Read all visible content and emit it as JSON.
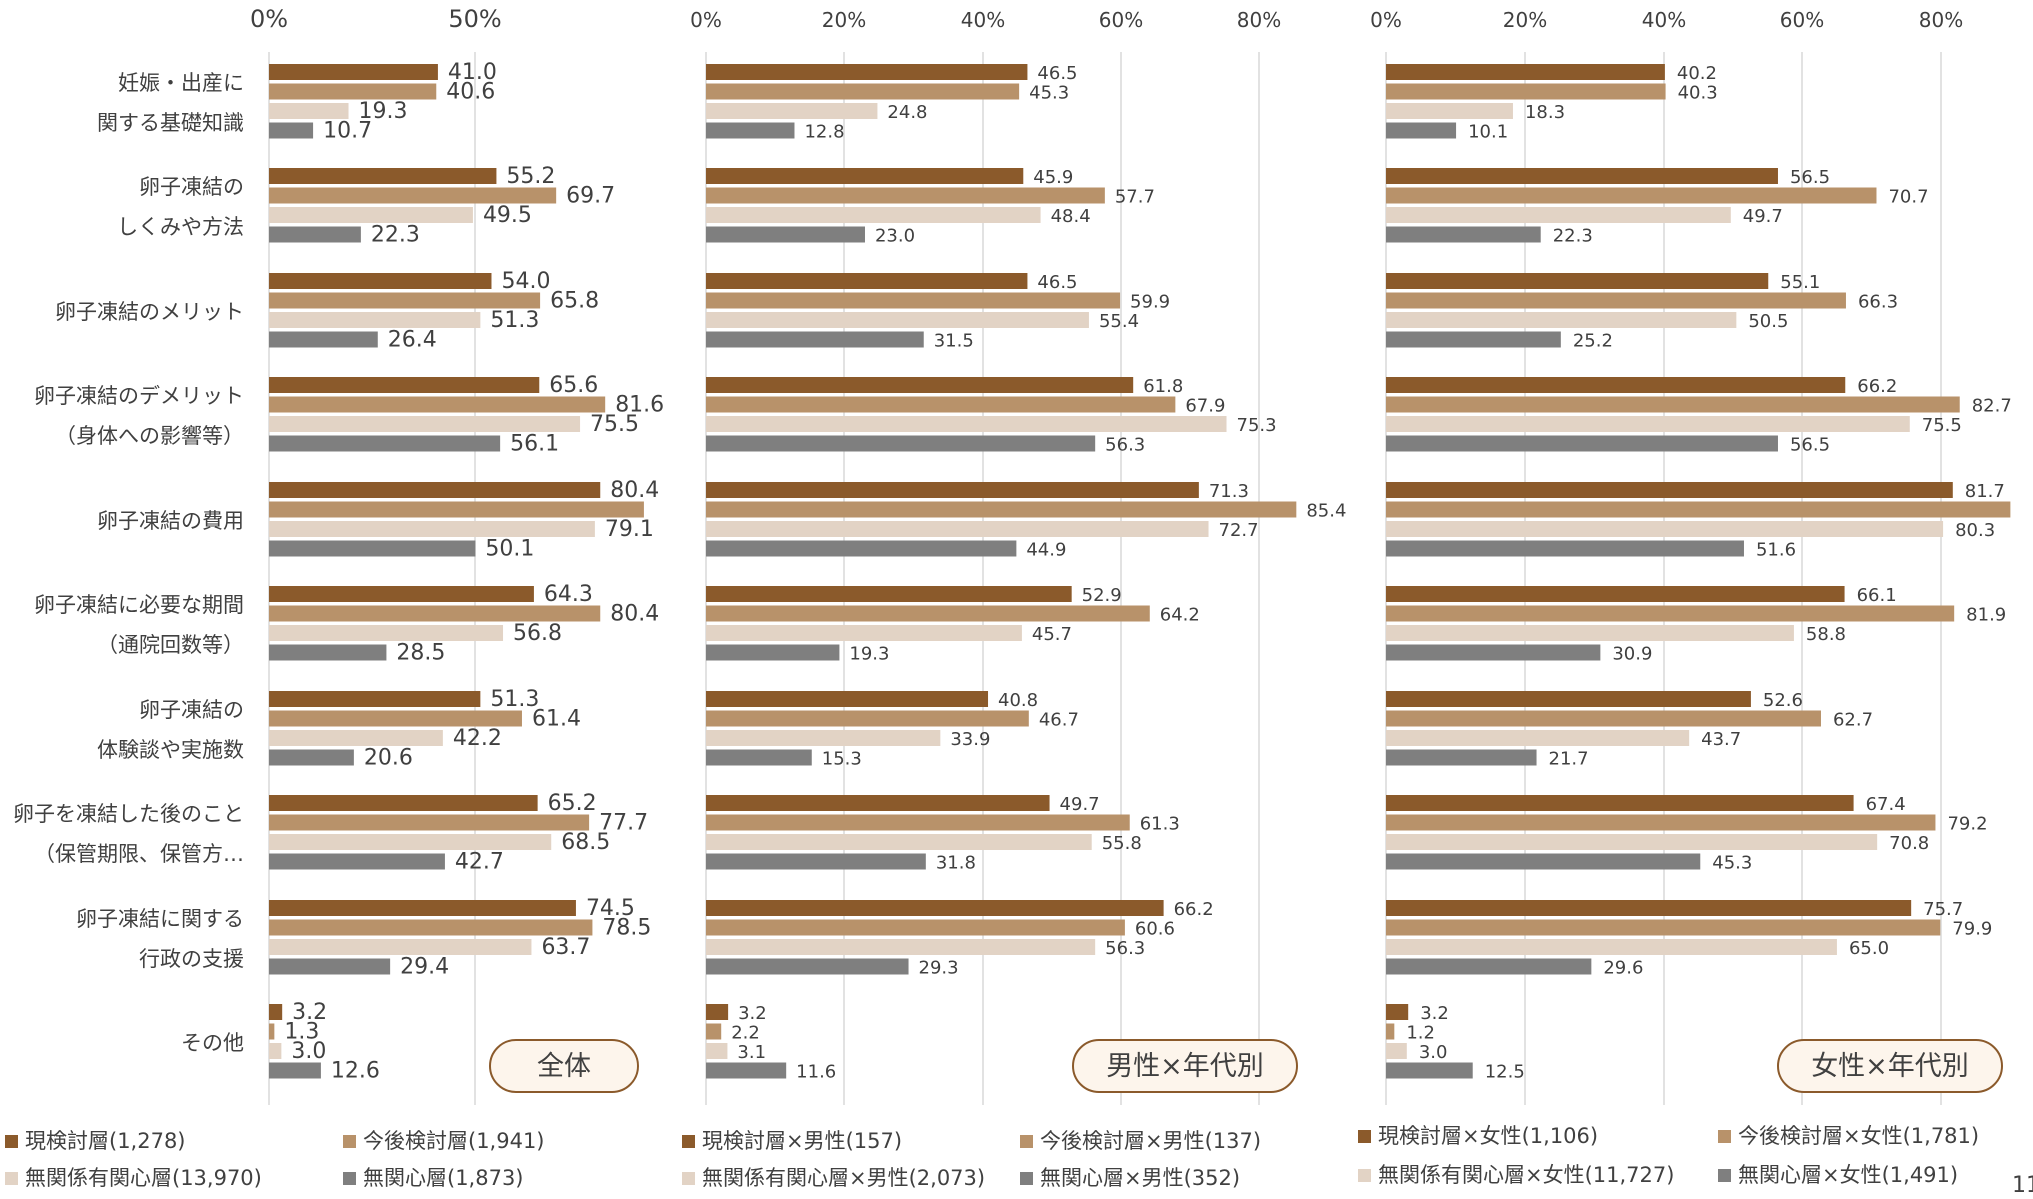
{
  "colors": {
    "s1": "#8B5A2B",
    "s2": "#B8926A",
    "s3": "#E2D3C5",
    "s4": "#7F7F7F",
    "grid": "#D9D9D9",
    "text": "#404040",
    "badge_border": "#8B5A2B",
    "badge_fill": "#FDF5EC"
  },
  "categories": [
    [
      "妊娠・出産に",
      "関する基礎知識"
    ],
    [
      "卵子凍結の",
      "しくみや方法"
    ],
    [
      "卵子凍結のメリット"
    ],
    [
      "卵子凍結のデメリット",
      "（身体への影響等）"
    ],
    [
      "卵子凍結の費用"
    ],
    [
      "卵子凍結に必要な期間",
      "（通院回数等）"
    ],
    [
      "卵子凍結の",
      "体験談や実施数"
    ],
    [
      "卵子を凍結した後のこと",
      "（保管期限、保管方…"
    ],
    [
      "卵子凍結に関する",
      "行政の支援"
    ],
    [
      "その他"
    ]
  ],
  "page_number": "11",
  "chart_data": [
    {
      "type": "bar",
      "orientation": "horizontal",
      "badge": "全体",
      "xlim": [
        0,
        90
      ],
      "ticks": [
        0,
        50
      ],
      "tick_labels": [
        "0%",
        "50%"
      ],
      "grid": true,
      "legend_position": "bottom",
      "series": [
        {
          "name": "現検討層(1,278)",
          "values": [
            41.0,
            55.2,
            54.0,
            65.6,
            80.4,
            64.3,
            51.3,
            65.2,
            74.5,
            3.2
          ],
          "labels": [
            "41.0",
            "55.2",
            "54.0",
            "65.6",
            "80.4",
            "64.3",
            "51.3",
            "65.2",
            "74.5",
            "3.2"
          ]
        },
        {
          "name": "今後検討層(1,941)",
          "values": [
            40.6,
            69.7,
            65.8,
            81.6,
            91.0,
            80.4,
            61.4,
            77.7,
            78.5,
            1.3
          ],
          "labels": [
            "40.6",
            "69.7",
            "65.8",
            "81.6",
            "",
            "80.4",
            "61.4",
            "77.7",
            "78.5",
            "1.3"
          ]
        },
        {
          "name": "無関係有関心層(13,970)",
          "values": [
            19.3,
            49.5,
            51.3,
            75.5,
            79.1,
            56.8,
            42.2,
            68.5,
            63.7,
            3.0
          ],
          "labels": [
            "19.3",
            "49.5",
            "51.3",
            "75.5",
            "79.1",
            "56.8",
            "42.2",
            "68.5",
            "63.7",
            "3.0"
          ]
        },
        {
          "name": "無関心層(1,873)",
          "values": [
            10.7,
            22.3,
            26.4,
            56.1,
            50.1,
            28.5,
            20.6,
            42.7,
            29.4,
            12.6
          ],
          "labels": [
            "10.7",
            "22.3",
            "26.4",
            "56.1",
            "50.1",
            "28.5",
            "20.6",
            "42.7",
            "29.4",
            "12.6"
          ]
        }
      ]
    },
    {
      "type": "bar",
      "orientation": "horizontal",
      "badge": "男性×年代別",
      "xlim": [
        0,
        85.4
      ],
      "ticks": [
        0,
        20,
        40,
        60,
        80
      ],
      "tick_labels": [
        "0%",
        "20%",
        "40%",
        "60%",
        "80%"
      ],
      "grid": true,
      "legend_position": "bottom",
      "series": [
        {
          "name": "現検討層×男性(157)",
          "values": [
            46.5,
            45.9,
            46.5,
            61.8,
            71.3,
            52.9,
            40.8,
            49.7,
            66.2,
            3.2
          ],
          "labels": [
            "46.5",
            "45.9",
            "46.5",
            "61.8",
            "71.3",
            "52.9",
            "40.8",
            "49.7",
            "66.2",
            "3.2"
          ]
        },
        {
          "name": "今後検討層×男性(137)",
          "values": [
            45.3,
            57.7,
            59.9,
            67.9,
            85.4,
            64.2,
            46.7,
            61.3,
            60.6,
            2.2
          ],
          "labels": [
            "45.3",
            "57.7",
            "59.9",
            "67.9",
            "85.4",
            "64.2",
            "46.7",
            "61.3",
            "60.6",
            "2.2"
          ]
        },
        {
          "name": "無関係有関心層×男性(2,073)",
          "values": [
            24.8,
            48.4,
            55.4,
            75.3,
            72.7,
            45.7,
            33.9,
            55.8,
            56.3,
            3.1
          ],
          "labels": [
            "24.8",
            "48.4",
            "55.4",
            "75.3",
            "72.7",
            "45.7",
            "33.9",
            "55.8",
            "56.3",
            "3.1"
          ]
        },
        {
          "name": "無関心層×男性(352)",
          "values": [
            12.8,
            23.0,
            31.5,
            56.3,
            44.9,
            19.3,
            15.3,
            31.8,
            29.3,
            11.6
          ],
          "labels": [
            "12.8",
            "23.0",
            "31.5",
            "56.3",
            "44.9",
            "19.3",
            "15.3",
            "31.8",
            "29.3",
            "11.6"
          ]
        }
      ]
    },
    {
      "type": "bar",
      "orientation": "horizontal",
      "badge": "女性×年代別",
      "xlim": [
        0,
        90
      ],
      "ticks": [
        0,
        20,
        40,
        60,
        80
      ],
      "tick_labels": [
        "0%",
        "20%",
        "40%",
        "60%",
        "80%"
      ],
      "grid": true,
      "legend_position": "bottom",
      "series": [
        {
          "name": "現検討層×女性(1,106)",
          "values": [
            40.2,
            56.5,
            55.1,
            66.2,
            81.7,
            66.1,
            52.6,
            67.4,
            75.7,
            3.2
          ],
          "labels": [
            "40.2",
            "56.5",
            "55.1",
            "66.2",
            "81.7",
            "66.1",
            "52.6",
            "67.4",
            "75.7",
            "3.2"
          ]
        },
        {
          "name": "今後検討層×女性(1,781)",
          "values": [
            40.3,
            70.7,
            66.3,
            82.7,
            90.0,
            81.9,
            62.7,
            79.2,
            79.9,
            1.2
          ],
          "labels": [
            "40.3",
            "70.7",
            "66.3",
            "82.7",
            "",
            "81.9",
            "62.7",
            "79.2",
            "79.9",
            "1.2"
          ]
        },
        {
          "name": "無関係有関心層×女性(11,727)",
          "values": [
            18.3,
            49.7,
            50.5,
            75.5,
            80.3,
            58.8,
            43.7,
            70.8,
            65.0,
            3.0
          ],
          "labels": [
            "18.3",
            "49.7",
            "50.5",
            "75.5",
            "80.3",
            "58.8",
            "43.7",
            "70.8",
            "65.0",
            "3.0"
          ]
        },
        {
          "name": "無関心層×女性(1,491)",
          "values": [
            10.1,
            22.3,
            25.2,
            56.5,
            51.6,
            30.9,
            21.7,
            45.3,
            29.6,
            12.5
          ],
          "labels": [
            "10.1",
            "22.3",
            "25.2",
            "56.5",
            "51.6",
            "30.9",
            "21.7",
            "45.3",
            "29.6",
            "12.5"
          ]
        }
      ]
    }
  ]
}
